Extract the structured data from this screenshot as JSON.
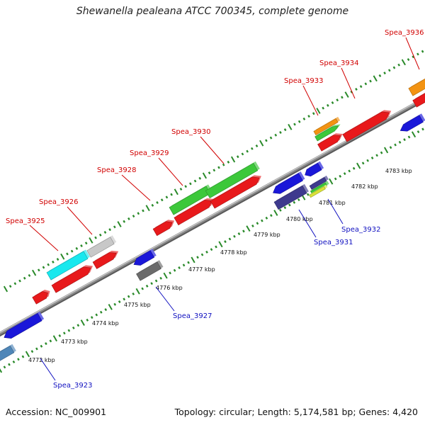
{
  "title": "Shewanella pealeana ATCC 700345, complete genome",
  "footer": {
    "accession": "Accession: NC_009901",
    "stats": "Topology: circular; Length: 5,174,581 bp; Genes: 4,420"
  },
  "colors": {
    "red": "#e8191b",
    "blue": "#1a17d9",
    "green": "#3cc83a",
    "cyan": "#19e8ee",
    "silver": "#c8c8c8",
    "gray": "#6b6b6b",
    "navy": "#3e3a8e",
    "orange": "#f39312",
    "steel": "#4f86b8",
    "yellow": "#d9e238",
    "backbone": "#8a8a8a",
    "tick": "#2a8a2a",
    "label_top": "#d10000",
    "label_bottom": "#1010c0"
  },
  "ticks": [
    {
      "id": "4772",
      "label": "4772 kbp"
    },
    {
      "id": "4773",
      "label": "4773 kbp"
    },
    {
      "id": "4774",
      "label": "4774 kbp"
    },
    {
      "id": "4775",
      "label": "4775 kbp"
    },
    {
      "id": "4776",
      "label": "4776 kbp"
    },
    {
      "id": "4777",
      "label": "4777 kbp"
    },
    {
      "id": "4778",
      "label": "4778 kbp"
    },
    {
      "id": "4779",
      "label": "4779 kbp"
    },
    {
      "id": "4780",
      "label": "4780 kbp"
    },
    {
      "id": "4781",
      "label": "4781 kbp"
    },
    {
      "id": "4782",
      "label": "4782 kbp"
    },
    {
      "id": "4783",
      "label": "4783 kbp"
    }
  ],
  "gene_labels": {
    "top": [
      "Spea_3925",
      "Spea_3926",
      "Spea_3928",
      "Spea_3929",
      "Spea_3930",
      "Spea_3933",
      "Spea_3934",
      "Spea_3936"
    ],
    "bottom": [
      "Spea_3923",
      "Spea_3927",
      "Spea_3931",
      "Spea_3932"
    ]
  },
  "features": [
    {
      "name": "outer-blue-1",
      "color": "blue"
    },
    {
      "name": "steel-feature",
      "color": "steel"
    },
    {
      "name": "red-feature-1",
      "color": "red"
    },
    {
      "name": "cyan-feature",
      "color": "cyan"
    },
    {
      "name": "red-feature-2",
      "color": "red"
    },
    {
      "name": "silver-feature",
      "color": "silver"
    },
    {
      "name": "red-feature-3",
      "color": "red"
    },
    {
      "name": "blue-feature-2",
      "color": "blue"
    },
    {
      "name": "gray-feature",
      "color": "gray"
    },
    {
      "name": "red-feature-4",
      "color": "red"
    },
    {
      "name": "green-feature-1",
      "color": "green"
    },
    {
      "name": "red-feature-5",
      "color": "red"
    },
    {
      "name": "green-feature-2",
      "color": "green"
    },
    {
      "name": "red-feature-6",
      "color": "red"
    },
    {
      "name": "blue-feature-3",
      "color": "blue"
    },
    {
      "name": "navy-feature",
      "color": "navy"
    },
    {
      "name": "blue-feature-4",
      "color": "blue"
    },
    {
      "name": "navy-small-feature",
      "color": "navy"
    },
    {
      "name": "green-small-feature",
      "color": "green"
    },
    {
      "name": "yellow-small-feature",
      "color": "yellow"
    },
    {
      "name": "orange-feature-1",
      "color": "orange"
    },
    {
      "name": "green-feature-3",
      "color": "green"
    },
    {
      "name": "red-feature-7",
      "color": "red"
    },
    {
      "name": "red-feature-8",
      "color": "red"
    },
    {
      "name": "blue-feature-5",
      "color": "blue"
    },
    {
      "name": "orange-feature-2",
      "color": "orange"
    },
    {
      "name": "red-feature-9",
      "color": "red"
    }
  ]
}
